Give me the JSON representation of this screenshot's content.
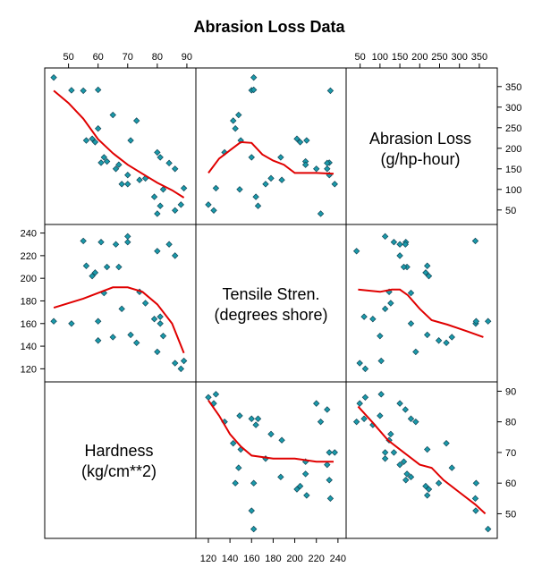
{
  "chart_data": {
    "type": "scatter",
    "title": "Abrasion Loss Data",
    "variables": [
      {
        "key": "abrasion",
        "label_line1": "Abrasion Loss",
        "label_line2": "(g/hp-hour)",
        "range": [
          30,
          380
        ],
        "ticks": [
          50,
          100,
          150,
          200,
          250,
          300,
          350
        ]
      },
      {
        "key": "tensile",
        "label_line1": "Tensile Stren.",
        "label_line2": "(degrees shore)",
        "range": [
          114,
          242
        ],
        "ticks": [
          120,
          140,
          160,
          180,
          200,
          220,
          240
        ]
      },
      {
        "key": "hardness",
        "label_line1": "Hardness",
        "label_line2": "(kg/cm**2)",
        "range": [
          44,
          91
        ],
        "ticks": [
          50,
          60,
          70,
          80,
          90
        ]
      }
    ],
    "observations": [
      {
        "hardness": 45,
        "tensile": 162,
        "abrasion": 372
      },
      {
        "hardness": 51,
        "tensile": 160,
        "abrasion": 341
      },
      {
        "hardness": 55,
        "tensile": 233,
        "abrasion": 340
      },
      {
        "hardness": 58,
        "tensile": 202,
        "abrasion": 223
      },
      {
        "hardness": 59,
        "tensile": 205,
        "abrasion": 215
      },
      {
        "hardness": 56,
        "tensile": 211,
        "abrasion": 219
      },
      {
        "hardness": 60,
        "tensile": 145,
        "abrasion": 248
      },
      {
        "hardness": 60,
        "tensile": 162,
        "abrasion": 342
      },
      {
        "hardness": 61,
        "tensile": 232,
        "abrasion": 165
      },
      {
        "hardness": 62,
        "tensile": 187,
        "abrasion": 178
      },
      {
        "hardness": 63,
        "tensile": 210,
        "abrasion": 168
      },
      {
        "hardness": 65,
        "tensile": 148,
        "abrasion": 281
      },
      {
        "hardness": 66,
        "tensile": 230,
        "abrasion": 150
      },
      {
        "hardness": 67,
        "tensile": 210,
        "abrasion": 160
      },
      {
        "hardness": 68,
        "tensile": 173,
        "abrasion": 113
      },
      {
        "hardness": 70,
        "tensile": 237,
        "abrasion": 113
      },
      {
        "hardness": 70,
        "tensile": 232,
        "abrasion": 135
      },
      {
        "hardness": 71,
        "tensile": 150,
        "abrasion": 219
      },
      {
        "hardness": 73,
        "tensile": 143,
        "abrasion": 267
      },
      {
        "hardness": 74,
        "tensile": 188,
        "abrasion": 123
      },
      {
        "hardness": 76,
        "tensile": 178,
        "abrasion": 127
      },
      {
        "hardness": 79,
        "tensile": 164,
        "abrasion": 82
      },
      {
        "hardness": 80,
        "tensile": 224,
        "abrasion": 41
      },
      {
        "hardness": 80,
        "tensile": 135,
        "abrasion": 190
      },
      {
        "hardness": 81,
        "tensile": 166,
        "abrasion": 60
      },
      {
        "hardness": 81,
        "tensile": 160,
        "abrasion": 178
      },
      {
        "hardness": 82,
        "tensile": 149,
        "abrasion": 100
      },
      {
        "hardness": 84,
        "tensile": 230,
        "abrasion": 164
      },
      {
        "hardness": 86,
        "tensile": 220,
        "abrasion": 150
      },
      {
        "hardness": 86,
        "tensile": 125,
        "abrasion": 49
      },
      {
        "hardness": 88,
        "tensile": 120,
        "abrasion": 63
      },
      {
        "hardness": 89,
        "tensile": 127,
        "abrasion": 103
      }
    ],
    "smooth_lines": {
      "abrasion_vs_hardness": [
        [
          45,
          340
        ],
        [
          50,
          310
        ],
        [
          55,
          272
        ],
        [
          60,
          222
        ],
        [
          65,
          188
        ],
        [
          70,
          160
        ],
        [
          75,
          138
        ],
        [
          80,
          116
        ],
        [
          85,
          98
        ],
        [
          89,
          80
        ]
      ],
      "abrasion_vs_tensile": [
        [
          120,
          140
        ],
        [
          130,
          175
        ],
        [
          140,
          195
        ],
        [
          150,
          215
        ],
        [
          160,
          213
        ],
        [
          170,
          185
        ],
        [
          180,
          170
        ],
        [
          190,
          160
        ],
        [
          200,
          140
        ],
        [
          220,
          140
        ],
        [
          236,
          138
        ]
      ],
      "tensile_vs_hardness": [
        [
          45,
          174
        ],
        [
          55,
          182
        ],
        [
          65,
          192
        ],
        [
          70,
          192
        ],
        [
          75,
          188
        ],
        [
          80,
          177
        ],
        [
          85,
          160
        ],
        [
          89,
          134
        ]
      ],
      "tensile_vs_abrasion": [
        [
          45,
          190
        ],
        [
          100,
          188
        ],
        [
          130,
          190
        ],
        [
          150,
          190
        ],
        [
          170,
          185
        ],
        [
          200,
          173
        ],
        [
          230,
          163
        ],
        [
          270,
          159
        ],
        [
          320,
          153
        ],
        [
          360,
          148
        ]
      ],
      "hardness_vs_tensile": [
        [
          120,
          87
        ],
        [
          130,
          82
        ],
        [
          140,
          76
        ],
        [
          150,
          72
        ],
        [
          160,
          69
        ],
        [
          180,
          68
        ],
        [
          200,
          68
        ],
        [
          220,
          67
        ],
        [
          236,
          67
        ]
      ],
      "hardness_vs_abrasion": [
        [
          45,
          85
        ],
        [
          80,
          80
        ],
        [
          120,
          74
        ],
        [
          160,
          70
        ],
        [
          200,
          66
        ],
        [
          230,
          65
        ],
        [
          260,
          61
        ],
        [
          300,
          57
        ],
        [
          340,
          53
        ],
        [
          365,
          50
        ]
      ]
    }
  }
}
